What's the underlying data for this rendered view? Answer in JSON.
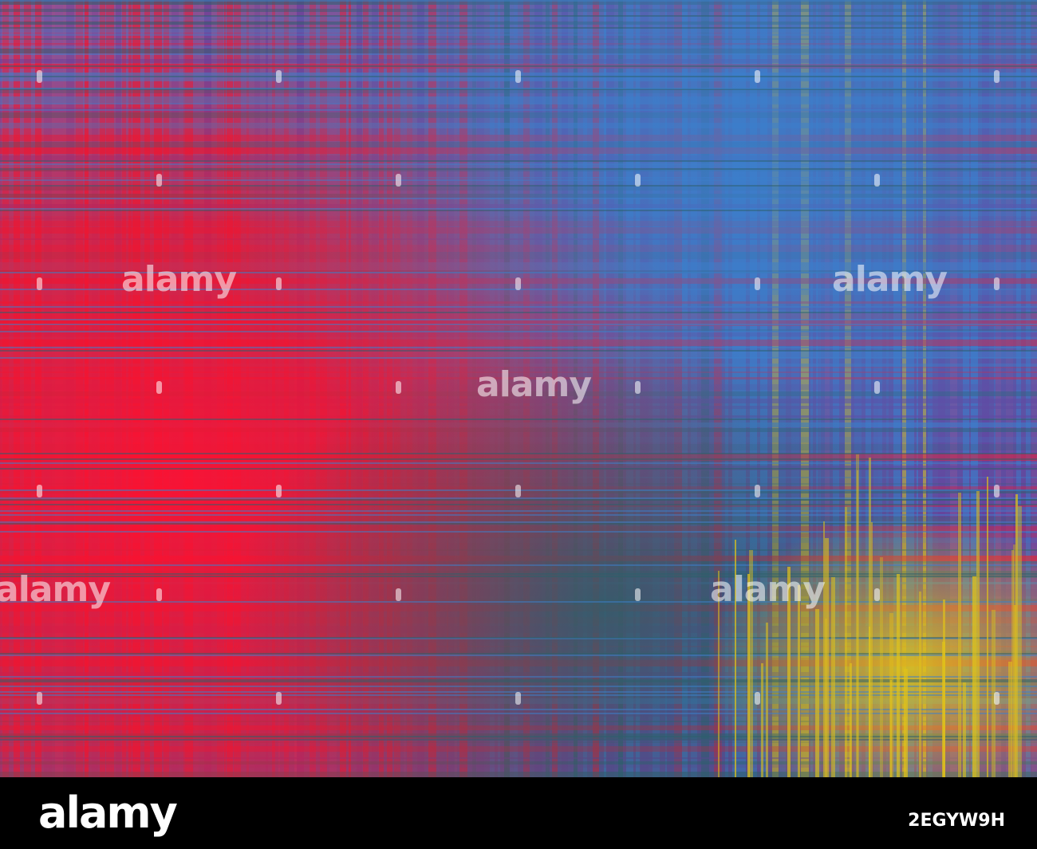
{
  "watermark": {
    "text": "alamy",
    "color": "#ffffff"
  },
  "footer": {
    "logo_text": "alamy",
    "image_id": "2EGYW9H",
    "background": "#000000"
  },
  "palette": {
    "purple": "#8a4f98",
    "red": "#f0142e",
    "blue": "#3b7fcc",
    "teal": "#2c5f6b",
    "violet": "#6a3d9a",
    "yellow": "#e0c21a"
  }
}
